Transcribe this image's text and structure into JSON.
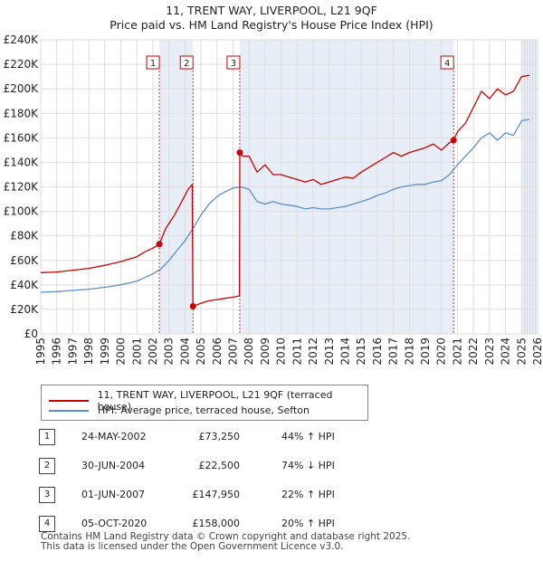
{
  "header": {
    "title": "11, TRENT WAY, LIVERPOOL, L21 9QF",
    "subtitle": "Price paid vs. HM Land Registry's House Price Index (HPI)"
  },
  "chart_data": {
    "type": "line",
    "title": "11, TRENT WAY, LIVERPOOL, L21 9QF",
    "subtitle": "Price paid vs. HM Land Registry's House Price Index (HPI)",
    "xlabel": "",
    "ylabel": "",
    "xlim": [
      1995,
      2026
    ],
    "ylim": [
      0,
      240000
    ],
    "y_ticks": [
      0,
      20000,
      40000,
      60000,
      80000,
      100000,
      120000,
      140000,
      160000,
      180000,
      200000,
      220000,
      240000
    ],
    "y_tick_labels": [
      "£0",
      "£20K",
      "£40K",
      "£60K",
      "£80K",
      "£100K",
      "£120K",
      "£140K",
      "£160K",
      "£180K",
      "£200K",
      "£220K",
      "£240K"
    ],
    "x_ticks": [
      1995,
      1996,
      1997,
      1998,
      1999,
      2000,
      2001,
      2002,
      2003,
      2004,
      2005,
      2006,
      2007,
      2008,
      2009,
      2010,
      2011,
      2012,
      2013,
      2014,
      2015,
      2016,
      2017,
      2018,
      2019,
      2020,
      2021,
      2022,
      2023,
      2024,
      2025,
      2026
    ],
    "x_tick_labels": [
      "1995",
      "1996",
      "1997",
      "1998",
      "1999",
      "2000",
      "2001",
      "2002",
      "2003",
      "2004",
      "2005",
      "2006",
      "2007",
      "2008",
      "2009",
      "2010",
      "2011",
      "2012",
      "2013",
      "2014",
      "2015",
      "2016",
      "2017",
      "2018",
      "2019",
      "2020",
      "2021",
      "2022",
      "2023",
      "2024",
      "2025",
      "2026"
    ],
    "grid": true,
    "series": [
      {
        "name": "11, TRENT WAY, LIVERPOOL, L21 9QF (terraced house)",
        "color": "#cc0000",
        "x": [
          1995.0,
          1996.0,
          1997.0,
          1998.0,
          1999.0,
          2000.0,
          2001.0,
          2001.5,
          2002.0,
          2002.4,
          2002.8,
          2003.3,
          2003.8,
          2004.2,
          2004.45,
          2004.5,
          2005.0,
          2005.5,
          2006.0,
          2006.5,
          2007.0,
          2007.4,
          2007.42,
          2007.6,
          2008.0,
          2008.5,
          2009.0,
          2009.5,
          2010.0,
          2010.5,
          2011.0,
          2011.5,
          2012.0,
          2012.5,
          2013.0,
          2013.5,
          2014.0,
          2014.5,
          2015.0,
          2015.5,
          2016.0,
          2016.5,
          2017.0,
          2017.5,
          2018.0,
          2018.5,
          2019.0,
          2019.5,
          2020.0,
          2020.5,
          2020.76,
          2021.0,
          2021.5,
          2022.0,
          2022.5,
          2023.0,
          2023.5,
          2024.0,
          2024.5,
          2025.0,
          2025.5
        ],
        "values": [
          50000,
          50500,
          52000,
          53500,
          56000,
          59000,
          63000,
          67000,
          70000,
          73250,
          86000,
          96000,
          108000,
          118000,
          122000,
          22500,
          25000,
          27000,
          28000,
          29000,
          30000,
          31000,
          147950,
          145000,
          145000,
          132000,
          138000,
          130000,
          130000,
          128000,
          126000,
          124000,
          126000,
          122000,
          124000,
          126000,
          128000,
          127000,
          132000,
          136000,
          140000,
          144000,
          148000,
          145000,
          148000,
          150000,
          152000,
          155000,
          150000,
          156000,
          158000,
          165000,
          172000,
          185000,
          198000,
          192000,
          200000,
          195000,
          198000,
          210000,
          211000
        ]
      },
      {
        "name": "HPI: Average price, terraced house, Sefton",
        "color": "#5b8fcb",
        "x": [
          1995.0,
          1996.0,
          1997.0,
          1998.0,
          1999.0,
          2000.0,
          2001.0,
          2001.5,
          2002.0,
          2002.5,
          2003.0,
          2003.5,
          2004.0,
          2004.5,
          2005.0,
          2005.5,
          2006.0,
          2006.5,
          2007.0,
          2007.5,
          2008.0,
          2008.5,
          2009.0,
          2009.5,
          2010.0,
          2010.5,
          2011.0,
          2011.5,
          2012.0,
          2012.5,
          2013.0,
          2013.5,
          2014.0,
          2014.5,
          2015.0,
          2015.5,
          2016.0,
          2016.5,
          2017.0,
          2017.5,
          2018.0,
          2018.5,
          2019.0,
          2019.5,
          2020.0,
          2020.5,
          2021.0,
          2021.5,
          2022.0,
          2022.5,
          2023.0,
          2023.5,
          2024.0,
          2024.5,
          2025.0,
          2025.5
        ],
        "values": [
          34000,
          34500,
          35500,
          36500,
          38000,
          40000,
          43000,
          46000,
          49000,
          53000,
          60000,
          68000,
          76000,
          86000,
          97000,
          106000,
          112000,
          116000,
          119000,
          120000,
          118000,
          108000,
          106000,
          108000,
          106000,
          105000,
          104000,
          102000,
          103000,
          102000,
          102000,
          103000,
          104000,
          106000,
          108000,
          110000,
          113000,
          115000,
          118000,
          120000,
          121000,
          122000,
          122000,
          124000,
          125000,
          130000,
          138000,
          145000,
          152000,
          160000,
          164000,
          158000,
          164000,
          162000,
          174000,
          175000
        ]
      }
    ],
    "sale_markers": [
      {
        "label": "1",
        "x": 2002.4,
        "y": 73250
      },
      {
        "label": "2",
        "x": 2004.5,
        "y": 22500
      },
      {
        "label": "3",
        "x": 2007.42,
        "y": 147950
      },
      {
        "label": "4",
        "x": 2020.76,
        "y": 158000
      }
    ],
    "shaded_ranges": [
      [
        2002.4,
        2004.5
      ],
      [
        2007.42,
        2020.76
      ],
      [
        2025.0,
        2026.0
      ]
    ]
  },
  "legend": {
    "items": [
      {
        "label": "11, TRENT WAY, LIVERPOOL, L21 9QF (terraced house)",
        "color": "#cc0000"
      },
      {
        "label": "HPI: Average price, terraced house, Sefton",
        "color": "#5b8fcb"
      }
    ]
  },
  "sales": [
    {
      "num": "1",
      "date": "24-MAY-2002",
      "price": "£73,250",
      "hpi": "44% ↑ HPI"
    },
    {
      "num": "2",
      "date": "30-JUN-2004",
      "price": "£22,500",
      "hpi": "74% ↓ HPI"
    },
    {
      "num": "3",
      "date": "01-JUN-2007",
      "price": "£147,950",
      "hpi": "22% ↑ HPI"
    },
    {
      "num": "4",
      "date": "05-OCT-2020",
      "price": "£158,000",
      "hpi": "20% ↑ HPI"
    }
  ],
  "footer": {
    "line1": "Contains HM Land Registry data © Crown copyright and database right 2025.",
    "line2": "This data is licensed under the Open Government Licence v3.0."
  }
}
